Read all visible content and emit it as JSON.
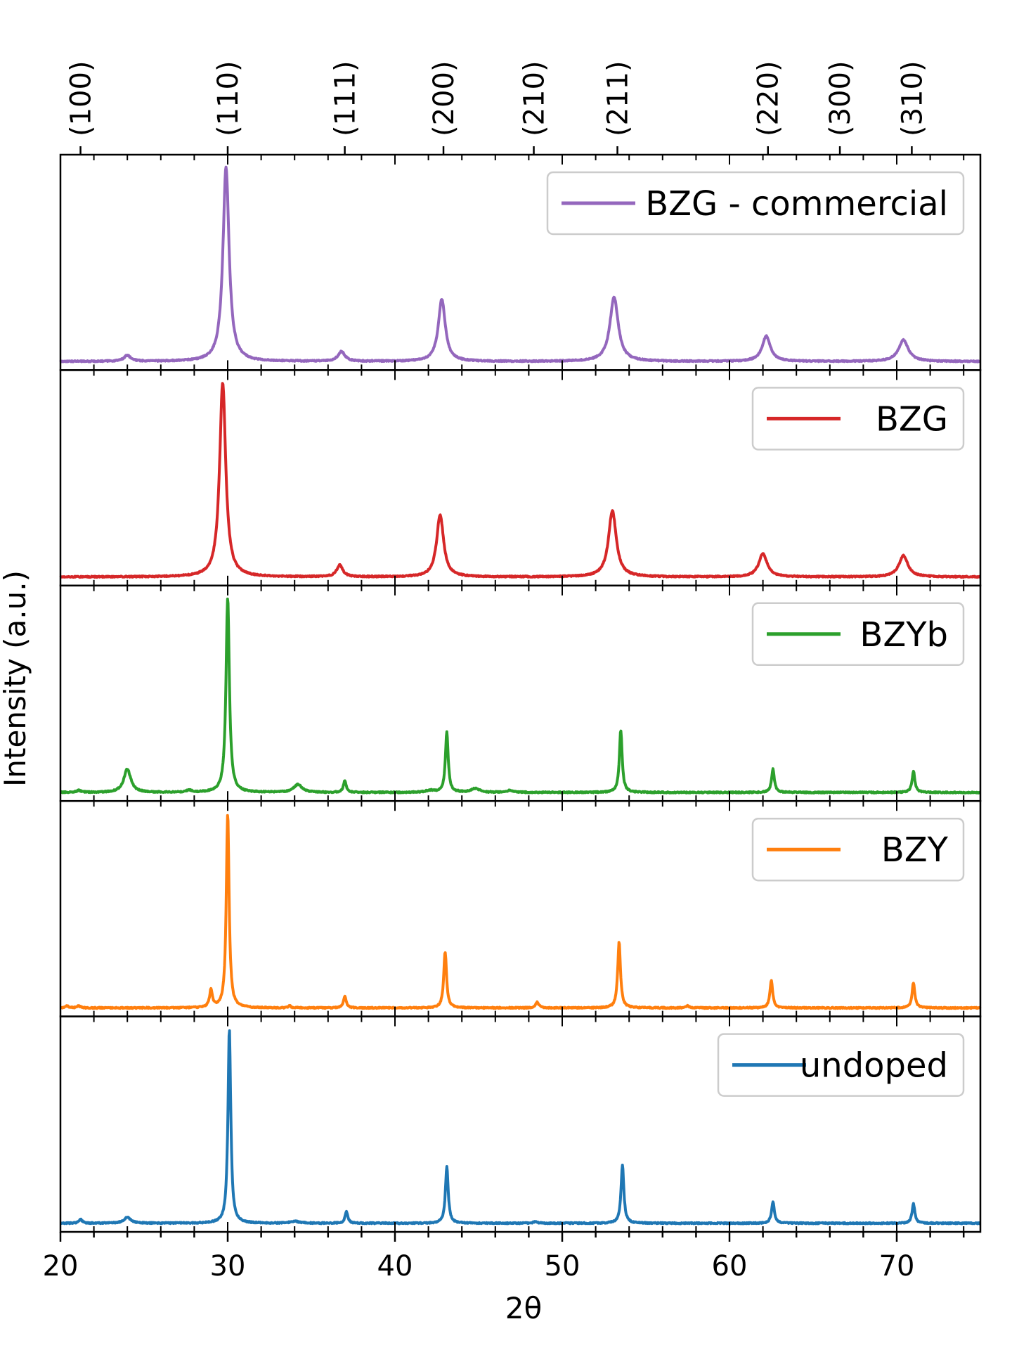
{
  "chart_data": {
    "type": "line",
    "xlabel": "2θ",
    "ylabel": "Intensity (a.u.)",
    "xlim": [
      20,
      75
    ],
    "xticks": [
      20,
      30,
      40,
      50,
      60,
      70
    ],
    "top_axis_labels": [
      {
        "label": "(100)",
        "x": 21.2
      },
      {
        "label": "(110)",
        "x": 30.0
      },
      {
        "label": "(111)",
        "x": 37.0
      },
      {
        "label": "(200)",
        "x": 42.9
      },
      {
        "label": "(210)",
        "x": 48.3
      },
      {
        "label": "(211)",
        "x": 53.3
      },
      {
        "label": "(220)",
        "x": 62.3
      },
      {
        "label": "(300)",
        "x": 66.6
      },
      {
        "label": "(310)",
        "x": 70.9
      }
    ],
    "legend_placement": "top-right",
    "series": [
      {
        "name": "BZG - commercial",
        "color": "#9467bd",
        "baseline": 0.06,
        "peaks": [
          [
            24.0,
            0.03,
            0.25
          ],
          [
            29.9,
            1.0,
            0.22
          ],
          [
            36.8,
            0.05,
            0.25
          ],
          [
            42.8,
            0.32,
            0.25
          ],
          [
            53.1,
            0.33,
            0.3
          ],
          [
            62.2,
            0.13,
            0.3
          ],
          [
            70.4,
            0.11,
            0.35
          ]
        ]
      },
      {
        "name": "BZG",
        "color": "#d62728",
        "baseline": 0.05,
        "peaks": [
          [
            29.7,
            1.0,
            0.22
          ],
          [
            36.7,
            0.06,
            0.22
          ],
          [
            42.7,
            0.32,
            0.25
          ],
          [
            53.0,
            0.34,
            0.28
          ],
          [
            62.0,
            0.12,
            0.3
          ],
          [
            70.4,
            0.11,
            0.32
          ]
        ]
      },
      {
        "name": "BZYb",
        "color": "#2ca02c",
        "baseline": 0.03,
        "peaks": [
          [
            21.1,
            0.01,
            0.15
          ],
          [
            24.0,
            0.12,
            0.25
          ],
          [
            27.7,
            0.01,
            0.2
          ],
          [
            30.0,
            1.0,
            0.12
          ],
          [
            34.2,
            0.04,
            0.3
          ],
          [
            37.0,
            0.06,
            0.1
          ],
          [
            42.1,
            0.01,
            0.3
          ],
          [
            43.1,
            0.31,
            0.1
          ],
          [
            44.8,
            0.02,
            0.3
          ],
          [
            46.9,
            0.01,
            0.25
          ],
          [
            53.5,
            0.32,
            0.1
          ],
          [
            62.6,
            0.12,
            0.1
          ],
          [
            71.0,
            0.11,
            0.1
          ]
        ]
      },
      {
        "name": "BZY",
        "color": "#ff7f0e",
        "baseline": 0.02,
        "peaks": [
          [
            20.4,
            0.01,
            0.12
          ],
          [
            21.1,
            0.01,
            0.12
          ],
          [
            29.0,
            0.09,
            0.1
          ],
          [
            30.0,
            1.0,
            0.1
          ],
          [
            33.7,
            0.01,
            0.1
          ],
          [
            37.0,
            0.06,
            0.1
          ],
          [
            43.0,
            0.29,
            0.1
          ],
          [
            48.5,
            0.03,
            0.12
          ],
          [
            53.4,
            0.34,
            0.1
          ],
          [
            57.5,
            0.01,
            0.12
          ],
          [
            62.5,
            0.14,
            0.1
          ],
          [
            71.0,
            0.13,
            0.1
          ]
        ]
      },
      {
        "name": "undoped",
        "color": "#1f77b4",
        "baseline": 0.05,
        "peaks": [
          [
            21.2,
            0.02,
            0.12
          ],
          [
            24.0,
            0.03,
            0.25
          ],
          [
            30.1,
            1.0,
            0.1
          ],
          [
            34.0,
            0.01,
            0.3
          ],
          [
            37.1,
            0.06,
            0.1
          ],
          [
            43.1,
            0.29,
            0.1
          ],
          [
            48.4,
            0.01,
            0.12
          ],
          [
            53.6,
            0.3,
            0.1
          ],
          [
            62.6,
            0.11,
            0.1
          ],
          [
            71.0,
            0.1,
            0.1
          ]
        ]
      }
    ]
  }
}
